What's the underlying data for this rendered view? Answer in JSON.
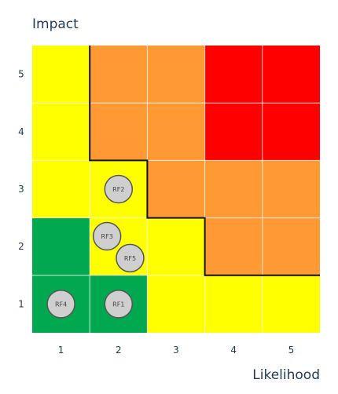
{
  "chart_data": {
    "type": "heatmap",
    "y_title": "Impact",
    "x_title": "Likelihood",
    "x_ticks": [
      "1",
      "2",
      "3",
      "4",
      "5"
    ],
    "y_ticks": [
      "1",
      "2",
      "3",
      "4",
      "5"
    ],
    "colors": {
      "green": "#00a84f",
      "yellow": "#ffff00",
      "orange": "#ff9933",
      "red": "#ff0000",
      "grid": "#ffffff",
      "boundary": "#111111",
      "marker_fill": "#cfcfcf",
      "marker_stroke": "#555555"
    },
    "cells": [
      [
        "green",
        "green",
        "yellow",
        "yellow",
        "yellow"
      ],
      [
        "green",
        "yellow",
        "yellow",
        "orange",
        "orange"
      ],
      [
        "yellow",
        "yellow",
        "orange",
        "orange",
        "orange"
      ],
      [
        "yellow",
        "orange",
        "orange",
        "red",
        "red"
      ],
      [
        "yellow",
        "orange",
        "orange",
        "red",
        "red"
      ]
    ],
    "boundary_line": [
      [
        1,
        5
      ],
      [
        1,
        3
      ],
      [
        2,
        3
      ],
      [
        2,
        2
      ],
      [
        3,
        2
      ],
      [
        3,
        1
      ],
      [
        5,
        1
      ]
    ],
    "risk_factors": [
      {
        "label": "RF4",
        "likelihood": 1,
        "impact": 1
      },
      {
        "label": "RF1",
        "likelihood": 2,
        "impact": 1
      },
      {
        "label": "RF3",
        "likelihood": 1.8,
        "impact": 2.18
      },
      {
        "label": "RF5",
        "likelihood": 2.2,
        "impact": 1.8
      },
      {
        "label": "RF2",
        "likelihood": 2,
        "impact": 3
      }
    ]
  }
}
